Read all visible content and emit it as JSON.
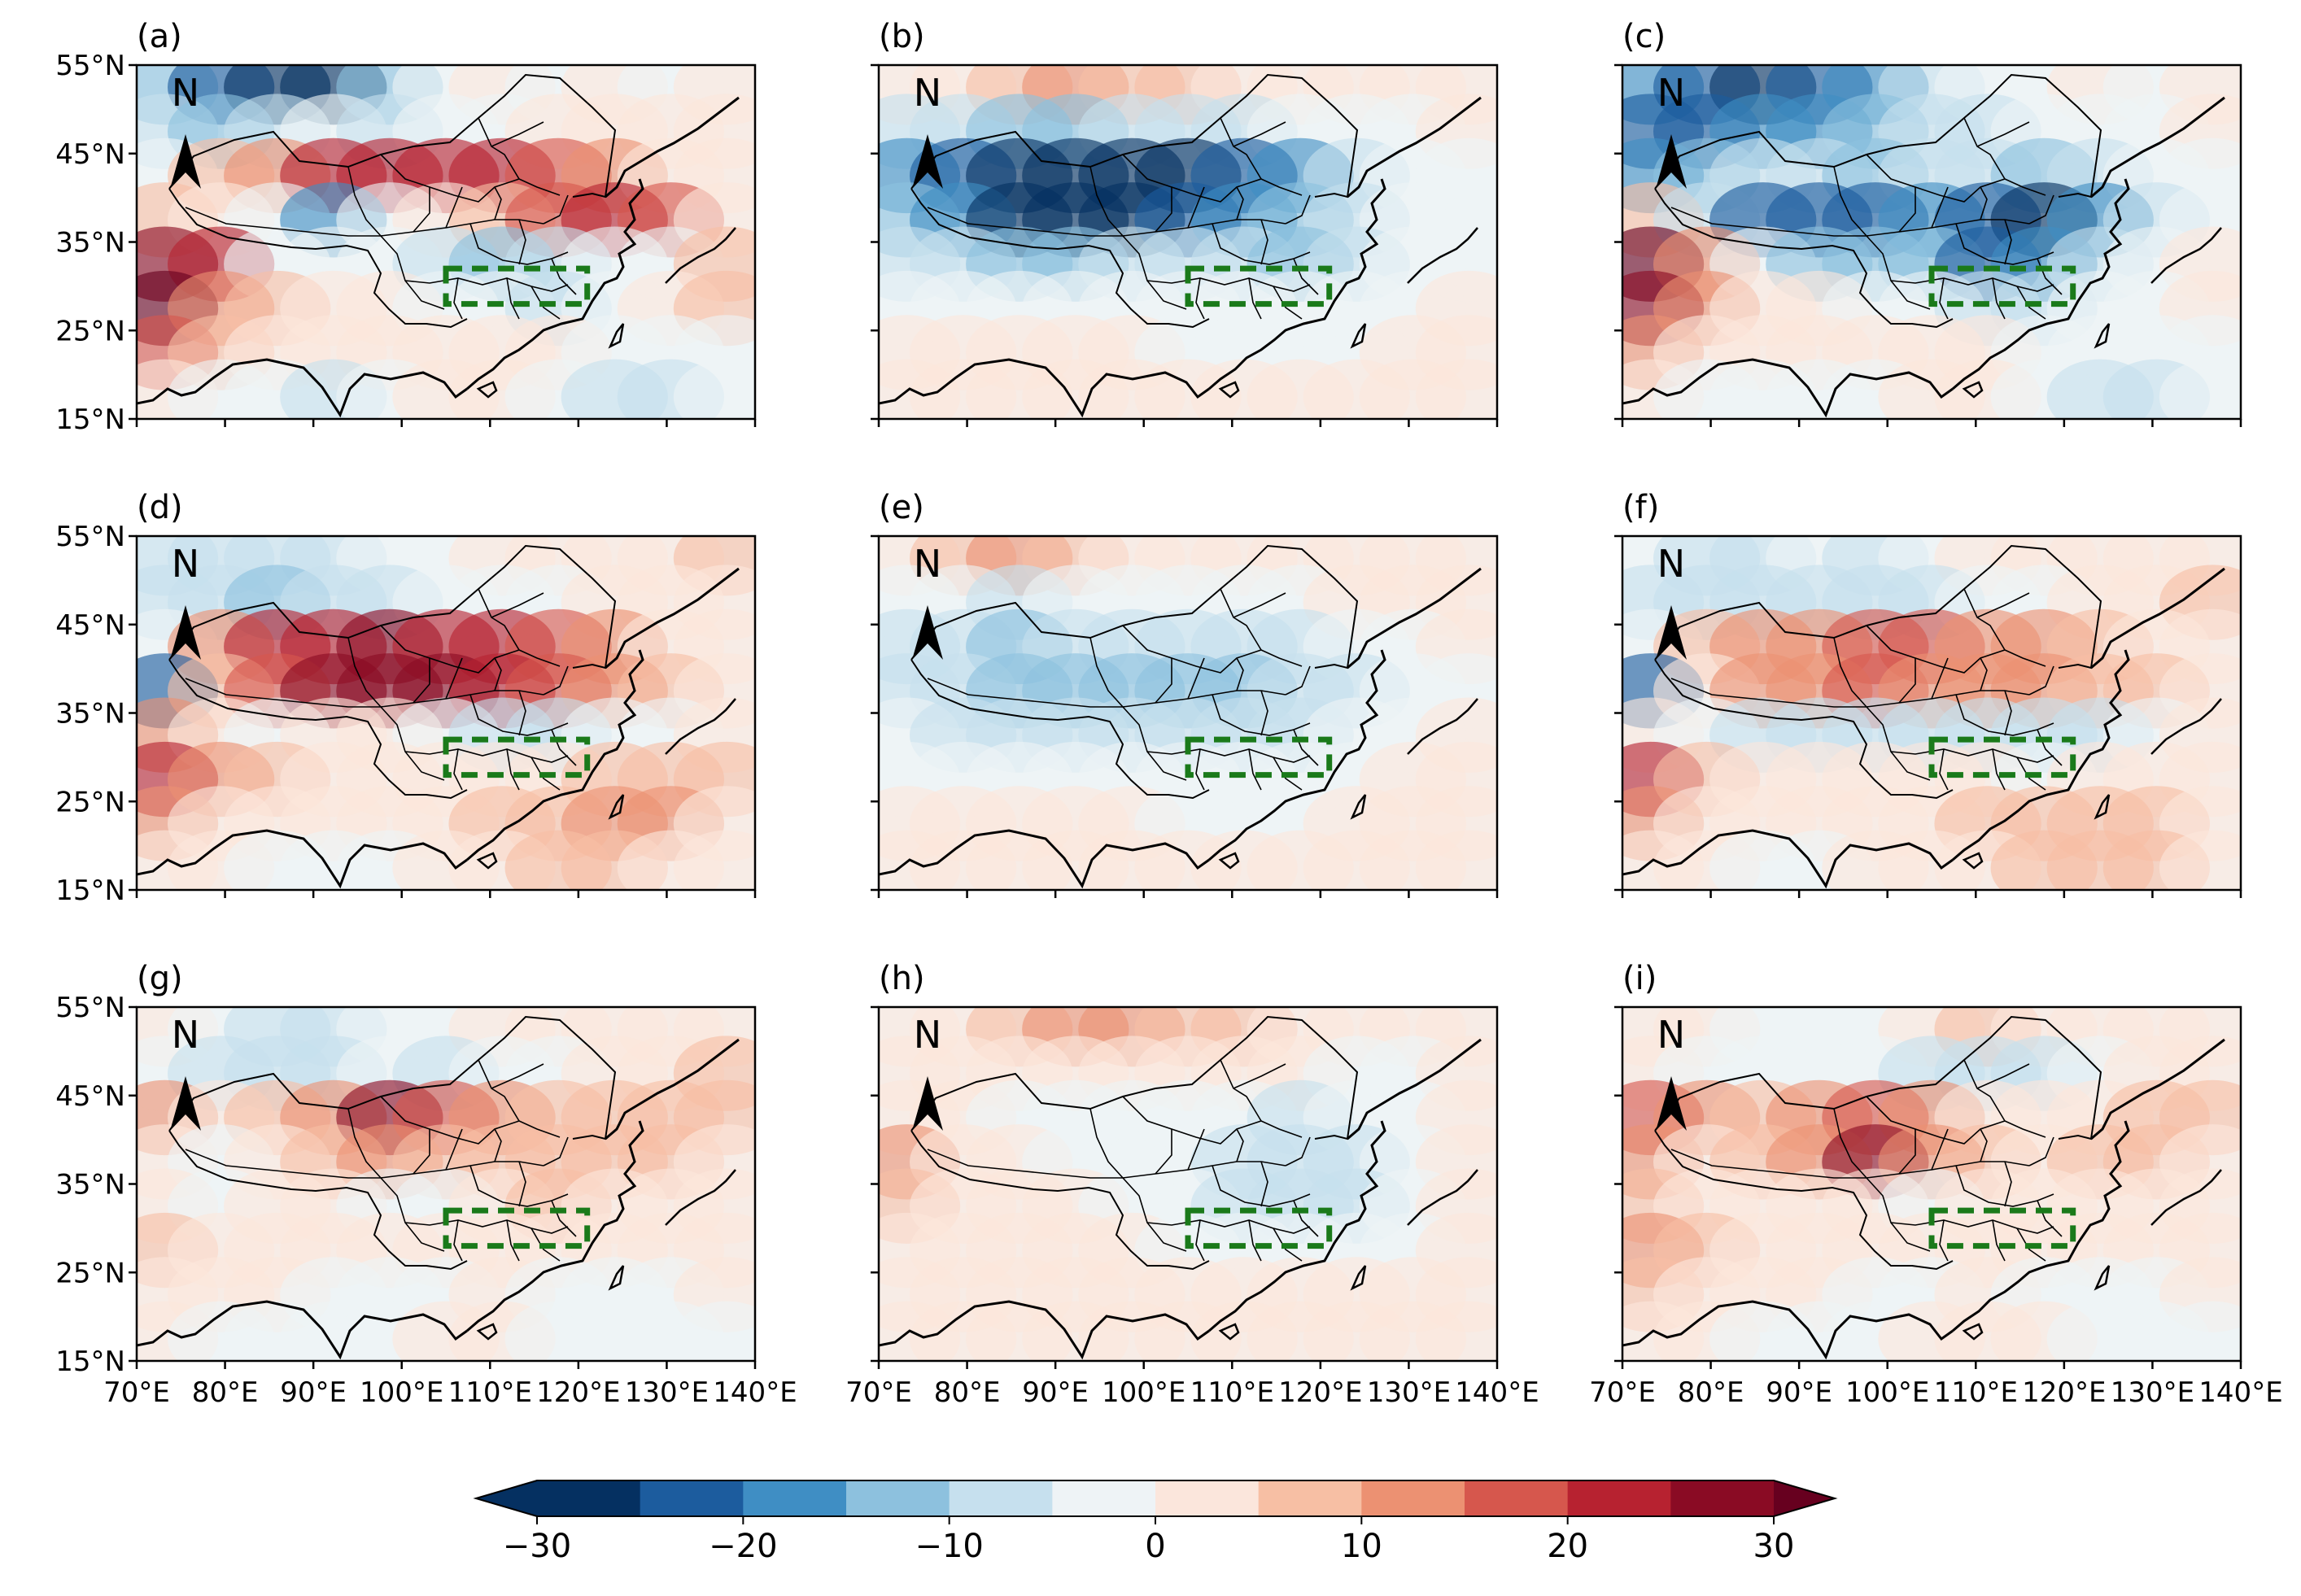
{
  "figure": {
    "panels": [
      {
        "id": "a",
        "label": "(a)",
        "pattern": [
          [
            -14,
            -24,
            -28,
            -26,
            -12,
            -4,
            2,
            -2,
            0,
            -2,
            4
          ],
          [
            -6,
            -14,
            -10,
            -4,
            -6,
            -4,
            -2,
            0,
            2,
            2,
            4
          ],
          [
            -4,
            6,
            14,
            20,
            24,
            22,
            20,
            16,
            10,
            4,
            4
          ],
          [
            6,
            0,
            -4,
            -20,
            -2,
            2,
            8,
            16,
            22,
            16,
            4
          ],
          [
            28,
            22,
            -4,
            -2,
            -4,
            -8,
            -12,
            -10,
            -4,
            -2,
            6
          ],
          [
            30,
            14,
            6,
            2,
            0,
            -2,
            -4,
            -6,
            -2,
            4,
            8
          ],
          [
            18,
            6,
            2,
            0,
            2,
            4,
            4,
            0,
            -2,
            -4,
            -2
          ],
          [
            4,
            -2,
            -4,
            -6,
            -2,
            2,
            0,
            -4,
            -6,
            -8,
            -4
          ]
        ]
      },
      {
        "id": "b",
        "label": "(b)",
        "pattern": [
          [
            2,
            4,
            8,
            10,
            8,
            6,
            4,
            2,
            2,
            2,
            2
          ],
          [
            -6,
            -10,
            -14,
            -12,
            -10,
            -8,
            -6,
            -4,
            -2,
            -2,
            0
          ],
          [
            -18,
            -24,
            -28,
            -28,
            -28,
            -26,
            -22,
            -16,
            -8,
            -4,
            -2
          ],
          [
            -12,
            -20,
            -26,
            -28,
            -26,
            -22,
            -18,
            -14,
            -8,
            -4,
            -2
          ],
          [
            -6,
            -10,
            -12,
            -12,
            -10,
            -10,
            -10,
            -12,
            -8,
            -4,
            -2
          ],
          [
            -2,
            -4,
            -4,
            -4,
            -2,
            -2,
            -4,
            -4,
            -2,
            -2,
            0
          ],
          [
            2,
            2,
            2,
            0,
            0,
            -2,
            -2,
            -2,
            -2,
            0,
            0
          ],
          [
            2,
            2,
            2,
            0,
            0,
            0,
            0,
            0,
            0,
            0,
            0
          ]
        ]
      },
      {
        "id": "c",
        "label": "(c)",
        "pattern": [
          [
            -18,
            -22,
            -26,
            -24,
            -16,
            -8,
            -2,
            -2,
            0,
            -2,
            4
          ],
          [
            -22,
            -24,
            -20,
            -16,
            -14,
            -10,
            -6,
            -4,
            -2,
            -2,
            0
          ],
          [
            -20,
            -14,
            -8,
            -10,
            -12,
            -8,
            -10,
            -12,
            -8,
            -4,
            -2
          ],
          [
            6,
            -10,
            -22,
            -24,
            -24,
            -20,
            -22,
            -26,
            -16,
            -8,
            -2
          ],
          [
            30,
            14,
            -4,
            -12,
            -14,
            -14,
            -22,
            -18,
            -8,
            -4,
            2
          ],
          [
            28,
            12,
            4,
            0,
            -2,
            -4,
            -6,
            -8,
            -4,
            -2,
            2
          ],
          [
            14,
            4,
            2,
            0,
            2,
            2,
            0,
            -2,
            -4,
            -4,
            -2
          ],
          [
            2,
            -2,
            -2,
            -4,
            -2,
            0,
            0,
            -4,
            -6,
            -6,
            -2
          ]
        ]
      },
      {
        "id": "d",
        "label": "(d)",
        "pattern": [
          [
            -6,
            -10,
            -8,
            -10,
            -4,
            -2,
            2,
            4,
            4,
            2,
            6
          ],
          [
            -8,
            -10,
            -14,
            -10,
            -8,
            -4,
            -4,
            -2,
            0,
            2,
            4
          ],
          [
            -4,
            10,
            20,
            24,
            26,
            24,
            20,
            16,
            10,
            4,
            4
          ],
          [
            -22,
            8,
            18,
            26,
            28,
            26,
            22,
            18,
            14,
            6,
            4
          ],
          [
            14,
            2,
            -2,
            0,
            2,
            -4,
            -6,
            -6,
            -4,
            -2,
            2
          ],
          [
            24,
            12,
            6,
            2,
            0,
            2,
            2,
            4,
            6,
            8,
            6
          ],
          [
            10,
            4,
            2,
            0,
            2,
            4,
            6,
            8,
            12,
            10,
            4
          ],
          [
            2,
            0,
            -2,
            -4,
            -2,
            2,
            4,
            6,
            6,
            4,
            2
          ]
        ]
      },
      {
        "id": "e",
        "label": "(e)",
        "pattern": [
          [
            2,
            6,
            10,
            8,
            4,
            2,
            2,
            2,
            2,
            0,
            2
          ],
          [
            -2,
            -4,
            -6,
            -4,
            -4,
            -4,
            -2,
            -2,
            0,
            0,
            2
          ],
          [
            -8,
            -10,
            -12,
            -10,
            -10,
            -10,
            -8,
            -6,
            -4,
            -2,
            0
          ],
          [
            -8,
            -10,
            -12,
            -12,
            -14,
            -14,
            -12,
            -10,
            -6,
            -4,
            -2
          ],
          [
            -4,
            -6,
            -6,
            -6,
            -8,
            -8,
            -8,
            -8,
            -4,
            -2,
            0
          ],
          [
            -2,
            -2,
            -2,
            -2,
            -2,
            -4,
            -4,
            -4,
            -2,
            0,
            0
          ],
          [
            2,
            2,
            2,
            0,
            0,
            -2,
            -2,
            -2,
            0,
            2,
            2
          ],
          [
            2,
            4,
            4,
            2,
            0,
            0,
            2,
            2,
            2,
            2,
            2
          ]
        ]
      },
      {
        "id": "f",
        "label": "(f)",
        "pattern": [
          [
            -4,
            -8,
            -6,
            -4,
            -6,
            -4,
            2,
            4,
            2,
            2,
            4
          ],
          [
            -6,
            -10,
            -10,
            -6,
            -8,
            -6,
            -4,
            -2,
            0,
            2,
            6
          ],
          [
            -4,
            6,
            12,
            14,
            16,
            16,
            14,
            10,
            6,
            4,
            2
          ],
          [
            -24,
            4,
            10,
            14,
            16,
            14,
            12,
            10,
            8,
            6,
            2
          ],
          [
            4,
            -4,
            -8,
            -10,
            -8,
            -10,
            -10,
            -8,
            -6,
            -2,
            0
          ],
          [
            22,
            8,
            2,
            0,
            0,
            2,
            0,
            -2,
            2,
            4,
            4
          ],
          [
            12,
            4,
            2,
            0,
            2,
            4,
            6,
            8,
            8,
            6,
            2
          ],
          [
            2,
            0,
            -2,
            -2,
            0,
            2,
            4,
            6,
            8,
            8,
            4
          ]
        ]
      },
      {
        "id": "g",
        "label": "(g)",
        "pattern": [
          [
            2,
            -4,
            -6,
            -8,
            -4,
            -2,
            2,
            4,
            2,
            2,
            4
          ],
          [
            -2,
            -6,
            -8,
            -6,
            -4,
            -6,
            -4,
            -2,
            2,
            4,
            6
          ],
          [
            14,
            4,
            8,
            14,
            28,
            16,
            10,
            6,
            6,
            6,
            6
          ],
          [
            4,
            -4,
            2,
            6,
            12,
            6,
            6,
            8,
            8,
            6,
            4
          ],
          [
            2,
            -2,
            0,
            2,
            -2,
            -2,
            4,
            6,
            4,
            2,
            2
          ],
          [
            6,
            4,
            2,
            0,
            0,
            2,
            2,
            2,
            2,
            2,
            2
          ],
          [
            2,
            2,
            0,
            -2,
            -2,
            -2,
            0,
            -2,
            -4,
            -2,
            0
          ],
          [
            0,
            -2,
            -2,
            -4,
            -2,
            0,
            2,
            -2,
            -4,
            -4,
            -2
          ]
        ]
      },
      {
        "id": "h",
        "label": "(h)",
        "pattern": [
          [
            2,
            4,
            8,
            10,
            10,
            8,
            6,
            4,
            4,
            2,
            2
          ],
          [
            0,
            2,
            4,
            4,
            4,
            4,
            2,
            0,
            -2,
            -2,
            0
          ],
          [
            4,
            2,
            -2,
            -2,
            -2,
            -2,
            -4,
            -6,
            -4,
            -2,
            0
          ],
          [
            10,
            4,
            0,
            -2,
            -2,
            -4,
            -6,
            -8,
            -6,
            -2,
            0
          ],
          [
            6,
            2,
            0,
            0,
            -2,
            -4,
            -6,
            -8,
            -6,
            -2,
            0
          ],
          [
            4,
            4,
            2,
            2,
            0,
            -2,
            -2,
            -4,
            -4,
            -2,
            0
          ],
          [
            2,
            2,
            2,
            0,
            0,
            0,
            2,
            2,
            0,
            0,
            0
          ],
          [
            2,
            2,
            2,
            2,
            2,
            2,
            2,
            2,
            2,
            2,
            2
          ]
        ]
      },
      {
        "id": "i",
        "label": "(i)",
        "pattern": [
          [
            4,
            2,
            -2,
            -4,
            -2,
            2,
            6,
            4,
            4,
            2,
            4
          ],
          [
            2,
            -2,
            -4,
            -4,
            -4,
            -6,
            -8,
            -6,
            -2,
            2,
            4
          ],
          [
            16,
            10,
            8,
            12,
            16,
            10,
            4,
            2,
            4,
            6,
            6
          ],
          [
            10,
            4,
            6,
            14,
            26,
            14,
            6,
            4,
            6,
            6,
            4
          ],
          [
            6,
            2,
            0,
            2,
            0,
            -2,
            0,
            2,
            2,
            2,
            2
          ],
          [
            12,
            6,
            4,
            2,
            2,
            2,
            2,
            2,
            2,
            2,
            2
          ],
          [
            8,
            4,
            2,
            0,
            -2,
            -2,
            0,
            -2,
            -4,
            -2,
            0
          ],
          [
            2,
            0,
            -2,
            -4,
            -2,
            2,
            4,
            0,
            -4,
            -4,
            -2
          ]
        ]
      }
    ],
    "north_arrow_letter": "N",
    "lat_ticks": [
      "55°N",
      "45°N",
      "35°N",
      "25°N",
      "15°N"
    ],
    "lon_ticks": [
      "70°E",
      "80°E",
      "90°E",
      "100°E",
      "110°E",
      "120°E",
      "130°E",
      "140°E"
    ],
    "region_box": {
      "lon_min": 105,
      "lon_max": 121,
      "lat_min": 28,
      "lat_max": 32,
      "color": "#1a7a1a"
    }
  },
  "colorbar": {
    "ticks": [
      "−30",
      "−20",
      "−10",
      "0",
      "10",
      "20",
      "30"
    ],
    "levels": [
      -30,
      -25,
      -20,
      -15,
      -10,
      -5,
      0,
      5,
      10,
      15,
      20,
      25,
      30
    ],
    "colors": [
      "#053061",
      "#1c5c9e",
      "#3f8ec4",
      "#8dc1de",
      "#c6e0ee",
      "#eef3f6",
      "#fbe6dc",
      "#f7bfa4",
      "#ec9172",
      "#d6574d",
      "#b72230",
      "#8a0b24"
    ],
    "extend": "both",
    "under_color": "#053061",
    "over_color": "#67001f"
  }
}
